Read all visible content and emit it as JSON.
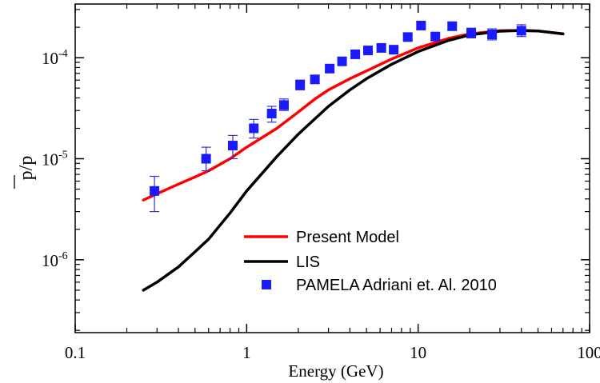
{
  "chart_data": {
    "type": "line",
    "xlabel": "Energy (GeV)",
    "ylabel": "p/p",
    "x_scale": "log",
    "y_scale": "log",
    "xlim": [
      0.1,
      100
    ],
    "ylim": [
      1.9e-07,
      0.00034
    ],
    "x_ticks": [
      {
        "value": 0.1,
        "label": "0.1"
      },
      {
        "value": 1,
        "label": "1"
      },
      {
        "value": 10,
        "label": "10"
      },
      {
        "value": 100,
        "label": "100"
      }
    ],
    "y_ticks": [
      {
        "value": 1e-06,
        "base": "10",
        "exp": "-6"
      },
      {
        "value": 1e-05,
        "base": "10",
        "exp": "-5"
      },
      {
        "value": 0.0001,
        "base": "10",
        "exp": "-4"
      }
    ],
    "grid": false,
    "legend_position": "bottom-right",
    "series": [
      {
        "name": "Present Model",
        "kind": "line",
        "color": "#ff0000",
        "points": [
          [
            0.25,
            3.9e-06
          ],
          [
            0.3,
            4.5e-06
          ],
          [
            0.4,
            5.6e-06
          ],
          [
            0.5,
            6.6e-06
          ],
          [
            0.6,
            7.6e-06
          ],
          [
            0.8,
            1e-05
          ],
          [
            1.0,
            1.3e-05
          ],
          [
            1.5,
            2e-05
          ],
          [
            2.0,
            2.9e-05
          ],
          [
            2.5,
            3.9e-05
          ],
          [
            3.0,
            4.8e-05
          ],
          [
            4.0,
            6.2e-05
          ],
          [
            5.0,
            7.4e-05
          ],
          [
            7.0,
            9.7e-05
          ],
          [
            10,
            0.000125
          ],
          [
            15,
            0.000155
          ],
          [
            20,
            0.000172
          ],
          [
            30,
            0.000185
          ],
          [
            40,
            0.000186
          ],
          [
            50,
            0.000184
          ],
          [
            70,
            0.000172
          ]
        ]
      },
      {
        "name": "LIS",
        "kind": "line",
        "color": "#000000",
        "points": [
          [
            0.25,
            5e-07
          ],
          [
            0.3,
            6e-07
          ],
          [
            0.4,
            8.5e-07
          ],
          [
            0.5,
            1.2e-06
          ],
          [
            0.6,
            1.6e-06
          ],
          [
            0.8,
            2.9e-06
          ],
          [
            1.0,
            4.8e-06
          ],
          [
            1.5,
            1.05e-05
          ],
          [
            2.0,
            1.75e-05
          ],
          [
            3.0,
            3.3e-05
          ],
          [
            4.0,
            4.8e-05
          ],
          [
            5.0,
            6.2e-05
          ],
          [
            7.0,
            8.6e-05
          ],
          [
            10,
            0.000115
          ],
          [
            15,
            0.000148
          ],
          [
            20,
            0.000168
          ],
          [
            30,
            0.000183
          ],
          [
            40,
            0.000186
          ],
          [
            50,
            0.000184
          ],
          [
            70,
            0.000172
          ]
        ]
      },
      {
        "name": "PAMELA Adriani et. Al. 2010",
        "kind": "scatter",
        "color": "#1a1aff",
        "errorbar_color": "#3333cc",
        "points": [
          {
            "x": 0.29,
            "y": 4.8e-06,
            "ylo": 3e-06,
            "yhi": 6.7e-06
          },
          {
            "x": 0.58,
            "y": 1e-05,
            "ylo": 7.6e-06,
            "yhi": 1.3e-05
          },
          {
            "x": 0.83,
            "y": 1.35e-05,
            "ylo": 1e-05,
            "yhi": 1.7e-05
          },
          {
            "x": 1.1,
            "y": 2e-05,
            "ylo": 1.6e-05,
            "yhi": 2.45e-05
          },
          {
            "x": 1.4,
            "y": 2.8e-05,
            "ylo": 2.3e-05,
            "yhi": 3.3e-05
          },
          {
            "x": 1.65,
            "y": 3.4e-05,
            "ylo": 3e-05,
            "yhi": 3.9e-05
          },
          {
            "x": 2.05,
            "y": 5.4e-05,
            "ylo": 4.8e-05,
            "yhi": 6e-05
          },
          {
            "x": 2.5,
            "y": 6.1e-05,
            "ylo": 5.6e-05,
            "yhi": 6.7e-05
          },
          {
            "x": 3.05,
            "y": 7.8e-05,
            "ylo": 7.2e-05,
            "yhi": 8.5e-05
          },
          {
            "x": 3.6,
            "y": 9.2e-05,
            "ylo": 8.5e-05,
            "yhi": 0.0001
          },
          {
            "x": 4.3,
            "y": 0.000108,
            "ylo": 0.0001,
            "yhi": 0.000116
          },
          {
            "x": 5.1,
            "y": 0.000118,
            "ylo": 0.00011,
            "yhi": 0.000127
          },
          {
            "x": 6.1,
            "y": 0.000125,
            "ylo": 0.000117,
            "yhi": 0.000134
          },
          {
            "x": 7.2,
            "y": 0.00012,
            "ylo": 0.000112,
            "yhi": 0.000129
          },
          {
            "x": 8.7,
            "y": 0.00016,
            "ylo": 0.00015,
            "yhi": 0.000171
          },
          {
            "x": 10.4,
            "y": 0.000208,
            "ylo": 0.000193,
            "yhi": 0.000224
          },
          {
            "x": 12.6,
            "y": 0.000162,
            "ylo": 0.000148,
            "yhi": 0.000177
          },
          {
            "x": 15.8,
            "y": 0.000205,
            "ylo": 0.000188,
            "yhi": 0.000223
          },
          {
            "x": 20.4,
            "y": 0.000175,
            "ylo": 0.000157,
            "yhi": 0.000196
          },
          {
            "x": 27.0,
            "y": 0.00017,
            "ylo": 0.00015,
            "yhi": 0.000193
          },
          {
            "x": 40.0,
            "y": 0.000185,
            "ylo": 0.000162,
            "yhi": 0.000212
          }
        ]
      }
    ]
  }
}
